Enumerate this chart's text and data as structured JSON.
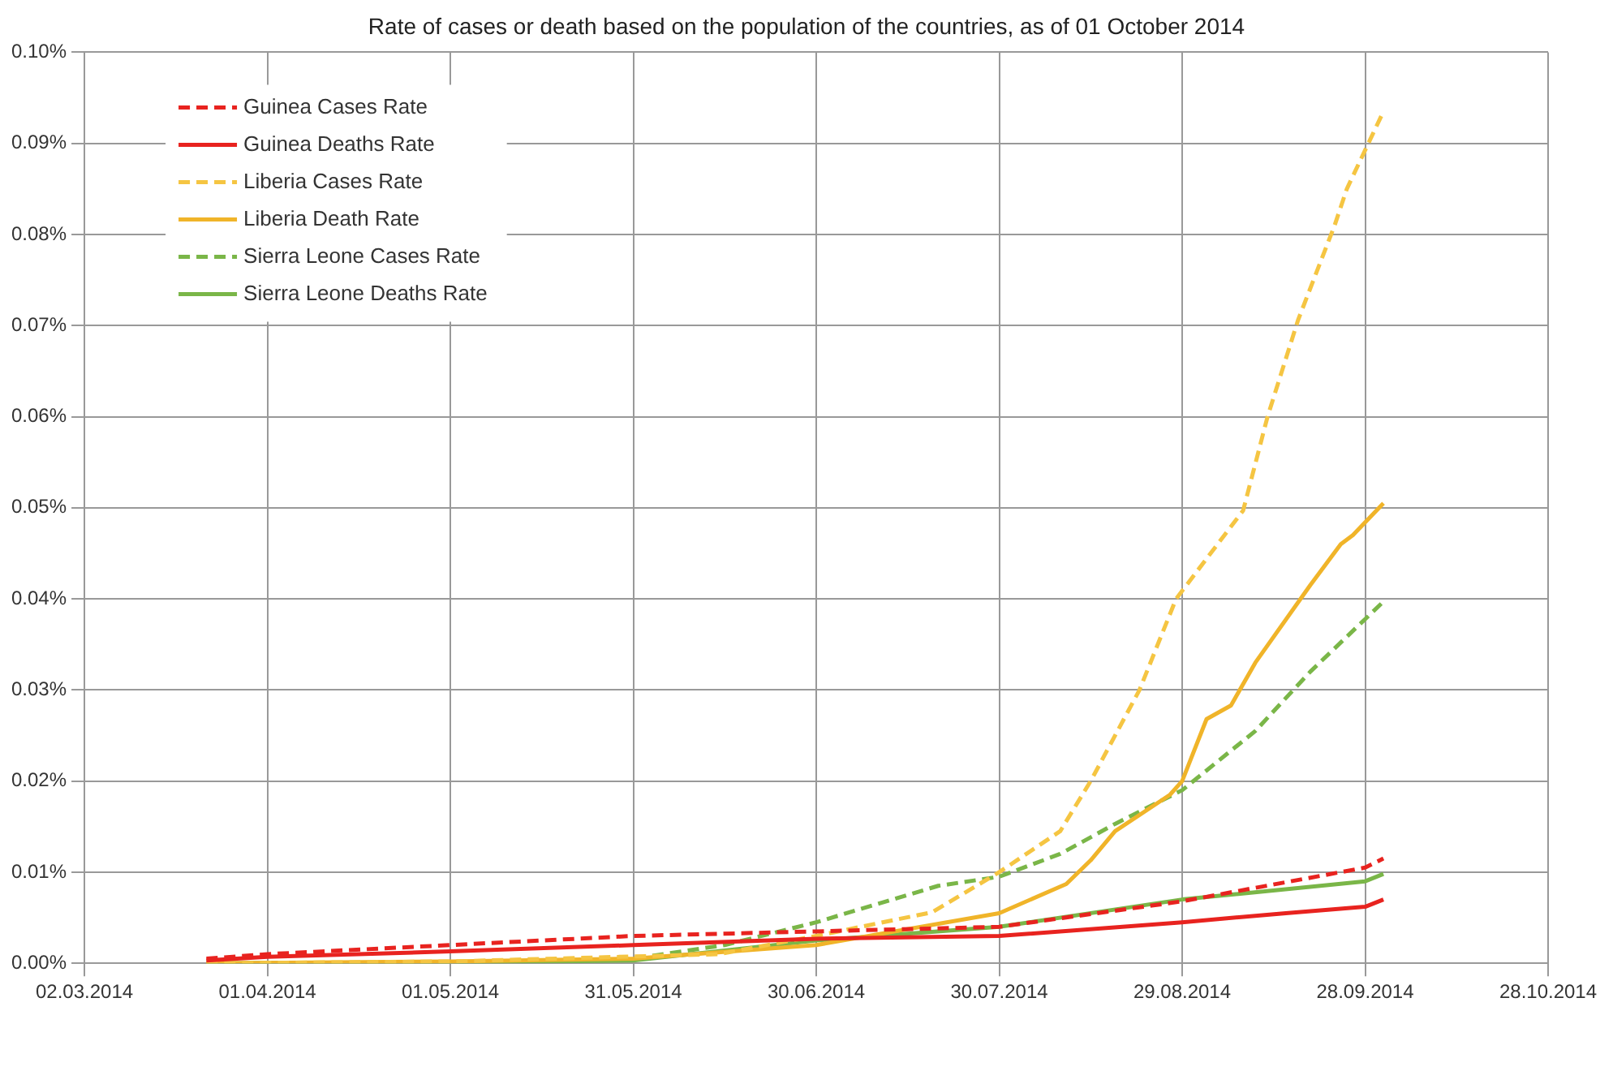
{
  "chart_data": {
    "type": "line",
    "subtitle": "Rate of cases or death based on the population of the countries, as of 01 October 2014",
    "xlim": [
      "2014-03-02",
      "2014-10-28"
    ],
    "xticks": [
      {
        "value": "2014-03-02",
        "label": "02.03.2014"
      },
      {
        "value": "2014-04-01",
        "label": "01.04.2014"
      },
      {
        "value": "2014-05-01",
        "label": "01.05.2014"
      },
      {
        "value": "2014-05-31",
        "label": "31.05.2014"
      },
      {
        "value": "2014-06-30",
        "label": "30.06.2014"
      },
      {
        "value": "2014-07-30",
        "label": "30.07.2014"
      },
      {
        "value": "2014-08-29",
        "label": "29.08.2014"
      },
      {
        "value": "2014-09-28",
        "label": "28.09.2014"
      },
      {
        "value": "2014-10-28",
        "label": "28.10.2014"
      }
    ],
    "ylim": [
      0,
      0.1
    ],
    "yticks": [
      {
        "value": 0,
        "label": "0.00%"
      },
      {
        "value": 0.01,
        "label": "0.01%"
      },
      {
        "value": 0.02,
        "label": "0.02%"
      },
      {
        "value": 0.03,
        "label": "0.03%"
      },
      {
        "value": 0.04,
        "label": "0.04%"
      },
      {
        "value": 0.05,
        "label": "0.05%"
      },
      {
        "value": 0.06,
        "label": "0.06%"
      },
      {
        "value": 0.07,
        "label": "0.07%"
      },
      {
        "value": 0.08,
        "label": "0.08%"
      },
      {
        "value": 0.09,
        "label": "0.09%"
      },
      {
        "value": 0.1,
        "label": "0.10%"
      }
    ],
    "grid": true,
    "legend": "top left",
    "marker": "none",
    "series": [
      {
        "name": "Guinea Cases Rate",
        "color": "#e8231f",
        "line_style": "dashed",
        "x": [
          "2014-03-22",
          "2014-04-01",
          "2014-05-01",
          "2014-05-31",
          "2014-06-30",
          "2014-07-30",
          "2014-08-29",
          "2014-09-28",
          "2014-10-01"
        ],
        "values": [
          0.0005,
          0.001,
          0.002,
          0.003,
          0.0035,
          0.004,
          0.0068,
          0.0105,
          0.0115
        ]
      },
      {
        "name": "Guinea Deaths Rate",
        "color": "#e8231f",
        "line_style": "solid",
        "x": [
          "2014-03-22",
          "2014-04-01",
          "2014-05-01",
          "2014-05-31",
          "2014-06-30",
          "2014-07-30",
          "2014-08-29",
          "2014-09-15",
          "2014-09-28",
          "2014-10-01"
        ],
        "values": [
          0.0003,
          0.0007,
          0.0013,
          0.002,
          0.0027,
          0.003,
          0.0045,
          0.0055,
          0.0062,
          0.007
        ]
      },
      {
        "name": "Liberia Cases Rate",
        "color": "#f5c542",
        "line_style": "dashed",
        "x": [
          "2014-03-22",
          "2014-05-01",
          "2014-06-14",
          "2014-06-30",
          "2014-07-19",
          "2014-07-30",
          "2014-08-09",
          "2014-08-14",
          "2014-08-22",
          "2014-08-28",
          "2014-09-08",
          "2014-09-12",
          "2014-09-17",
          "2014-09-23",
          "2014-09-25",
          "2014-10-01"
        ],
        "values": [
          0,
          0.0002,
          0.001,
          0.003,
          0.0056,
          0.01,
          0.0145,
          0.02,
          0.03,
          0.04,
          0.0497,
          0.06,
          0.0706,
          0.081,
          0.085,
          0.0935
        ]
      },
      {
        "name": "Liberia Death Rate",
        "color": "#f0b429",
        "line_style": "solid",
        "x": [
          "2014-03-22",
          "2014-05-01",
          "2014-05-31",
          "2014-06-30",
          "2014-07-30",
          "2014-08-10",
          "2014-08-14",
          "2014-08-18",
          "2014-08-27",
          "2014-08-29",
          "2014-09-02",
          "2014-09-06",
          "2014-09-10",
          "2014-09-19",
          "2014-09-24",
          "2014-09-26",
          "2014-10-01"
        ],
        "values": [
          0,
          0.0002,
          0.0005,
          0.002,
          0.0055,
          0.0087,
          0.0113,
          0.0145,
          0.0185,
          0.02,
          0.0268,
          0.0283,
          0.033,
          0.0415,
          0.046,
          0.047,
          0.0505
        ]
      },
      {
        "name": "Sierra Leone Cases Rate",
        "color": "#7ab648",
        "line_style": "dashed",
        "x": [
          "2014-03-22",
          "2014-05-01",
          "2014-05-31",
          "2014-06-15",
          "2014-06-30",
          "2014-07-20",
          "2014-07-30",
          "2014-08-09",
          "2014-08-18",
          "2014-08-29",
          "2014-09-10",
          "2014-09-19",
          "2014-10-01"
        ],
        "values": [
          0,
          0.0001,
          0.0005,
          0.002,
          0.0045,
          0.0085,
          0.0095,
          0.012,
          0.0153,
          0.019,
          0.0255,
          0.032,
          0.0397
        ]
      },
      {
        "name": "Sierra Leone Deaths Rate",
        "color": "#7ab648",
        "line_style": "solid",
        "x": [
          "2014-03-22",
          "2014-05-01",
          "2014-05-31",
          "2014-06-30",
          "2014-07-30",
          "2014-08-29",
          "2014-09-28",
          "2014-10-01"
        ],
        "values": [
          0,
          0.0001,
          0.0003,
          0.0025,
          0.004,
          0.007,
          0.009,
          0.0098
        ]
      }
    ]
  }
}
